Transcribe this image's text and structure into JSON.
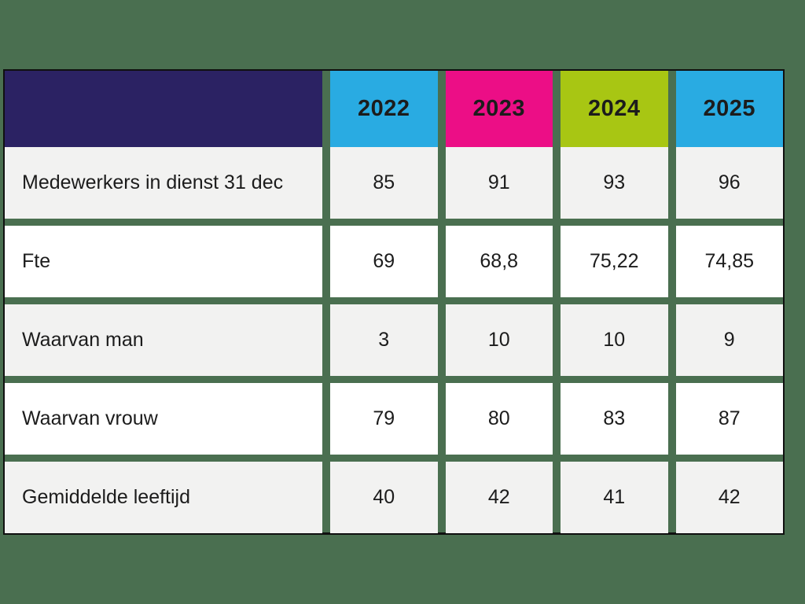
{
  "theme": {
    "bg": "#4a6f50",
    "navy": "#2b2263",
    "year-1": "#29abe2",
    "year-2": "#ec0e86",
    "year-3": "#a8c613",
    "year-4": "#29abe2",
    "row-odd": "#f2f2f1",
    "row-even": "#ffffff",
    "border": "#101010",
    "text": "#1c1c1c"
  },
  "chart_data": {
    "type": "table",
    "columns": [
      "",
      "2022",
      "2023",
      "2024",
      "2025"
    ],
    "header_colors": [
      "#2b2263",
      "#29abe2",
      "#ec0e86",
      "#a8c613",
      "#29abe2"
    ],
    "rows": [
      {
        "label": "Medewerkers in dienst 31 dec",
        "values": [
          "85",
          "91",
          "93",
          "96"
        ]
      },
      {
        "label": "Fte",
        "values": [
          "69",
          "68,8",
          "75,22",
          "74,85"
        ]
      },
      {
        "label": "Waarvan man",
        "values": [
          "3",
          "10",
          "10",
          "9"
        ]
      },
      {
        "label": "Waarvan vrouw",
        "values": [
          "79",
          "80",
          "83",
          "87"
        ]
      },
      {
        "label": "Gemiddelde leeftijd",
        "values": [
          "40",
          "42",
          "41",
          "42"
        ]
      }
    ]
  }
}
